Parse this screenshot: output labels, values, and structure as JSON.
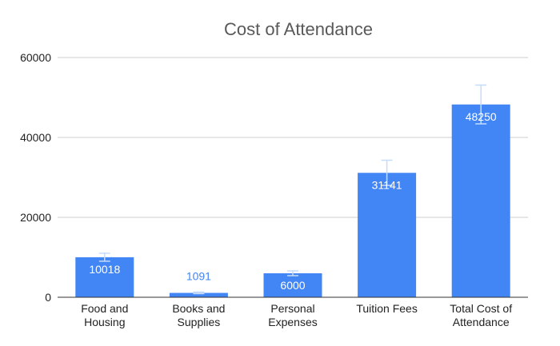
{
  "chart_data": {
    "type": "bar",
    "title": "Cost of Attendance",
    "xlabel": "",
    "ylabel": "",
    "ylim": [
      0,
      60000
    ],
    "yticks": [
      0,
      20000,
      40000,
      60000
    ],
    "categories": [
      [
        "Food and",
        "Housing"
      ],
      [
        "Books and",
        "Supplies"
      ],
      [
        "Personal",
        "Expenses"
      ],
      [
        "Tuition Fees"
      ],
      [
        "Total Cost of",
        "Attendance"
      ]
    ],
    "values": [
      10018,
      1091,
      6000,
      31141,
      48250
    ],
    "data_labels": [
      "10018",
      "1091",
      "6000",
      "31141",
      "48250"
    ],
    "error_bars": [
      [
        9018,
        11018
      ],
      [
        891,
        1291
      ],
      [
        5400,
        6600
      ],
      [
        28000,
        34300
      ],
      [
        43400,
        53100
      ]
    ],
    "grid": true,
    "legend": "none",
    "colors": {
      "bar": "#4285f4",
      "label_inside": "#ffffff",
      "label_outside": "#4285f4",
      "error_bar": "#c6dcfb",
      "grid": "#cccccc",
      "title": "#595959"
    }
  }
}
